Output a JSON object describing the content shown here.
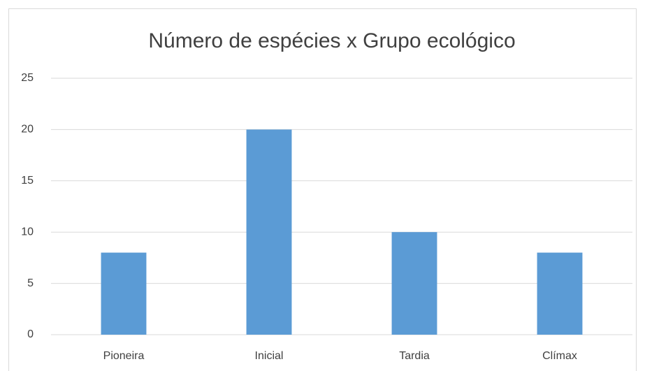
{
  "chart_data": {
    "type": "bar",
    "title": "Número de espécies x Grupo ecológico",
    "categories": [
      "Pioneira",
      "Inicial",
      "Tardia",
      "Clímax"
    ],
    "values": [
      8,
      20,
      10,
      8
    ],
    "color": "#5b9bd5",
    "ylim": [
      0,
      25
    ],
    "yticks": [
      0,
      5,
      10,
      15,
      20,
      25
    ],
    "grid": true
  }
}
